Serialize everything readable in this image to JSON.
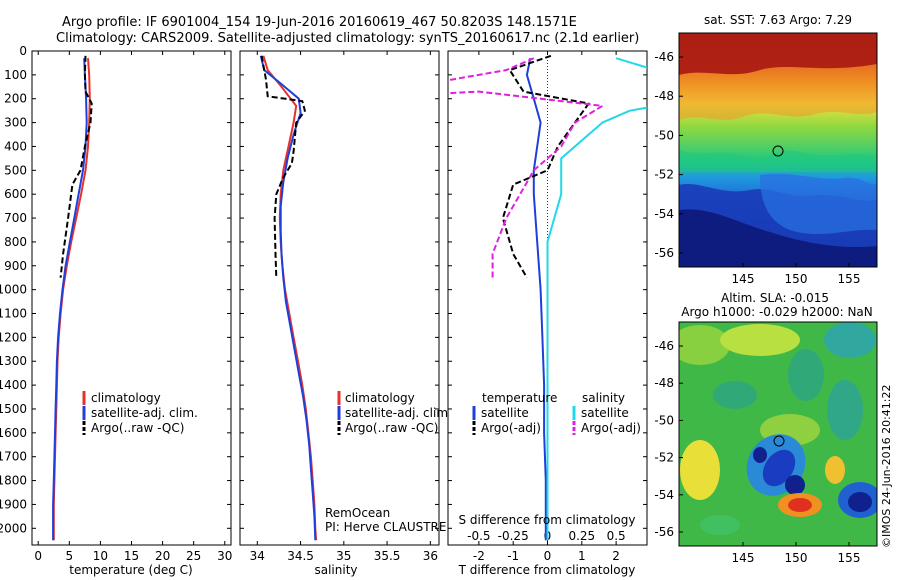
{
  "header": {
    "line1": "Argo profile: IF 6901004_154 19-Jun-2016 20160619_467 50.8203S 148.1571E",
    "line2": "Climatology: CARS2009. Satellite-adjusted climatology: synTS_20160617.nc (2.1d earlier)"
  },
  "colors": {
    "climatology": "#e8312a",
    "satellite": "#1f3fdc",
    "argo": "#000000",
    "sat_cyan": "#22d8e8",
    "argo_magenta": "#e020e0"
  },
  "chart_data": [
    {
      "type": "line",
      "id": "temperature",
      "xlabel": "temperature (deg C)",
      "ylabel": "",
      "xlim": [
        -1,
        31
      ],
      "ylim": [
        2070,
        0
      ],
      "xticks": [
        0,
        5,
        10,
        15,
        20,
        25,
        30
      ],
      "yticks": [
        0,
        100,
        200,
        300,
        400,
        500,
        600,
        700,
        800,
        900,
        1000,
        1100,
        1200,
        1300,
        1400,
        1500,
        1600,
        1700,
        1800,
        1900,
        2000
      ],
      "legend": [
        "climatology",
        "satellite-adj. clim.",
        "Argo(..raw -QC)"
      ],
      "series": [
        {
          "name": "climatology",
          "style": "solid",
          "color": "climatology",
          "points": [
            [
              8.0,
              30
            ],
            [
              8.2,
              100
            ],
            [
              8.3,
              200
            ],
            [
              8.2,
              300
            ],
            [
              8.0,
              400
            ],
            [
              7.6,
              500
            ],
            [
              6.9,
              600
            ],
            [
              6.1,
              700
            ],
            [
              5.3,
              800
            ],
            [
              4.6,
              900
            ],
            [
              4.0,
              1000
            ],
            [
              3.6,
              1100
            ],
            [
              3.3,
              1200
            ],
            [
              3.1,
              1300
            ],
            [
              3.0,
              1400
            ],
            [
              2.9,
              1500
            ],
            [
              2.8,
              1600
            ],
            [
              2.7,
              1700
            ],
            [
              2.6,
              1800
            ],
            [
              2.5,
              1900
            ],
            [
              2.5,
              2000
            ],
            [
              2.5,
              2050
            ]
          ]
        },
        {
          "name": "satellite-adj. clim.",
          "style": "solid",
          "color": "satellite",
          "points": [
            [
              7.4,
              30
            ],
            [
              7.5,
              100
            ],
            [
              7.7,
              200
            ],
            [
              7.8,
              300
            ],
            [
              7.6,
              400
            ],
            [
              7.2,
              500
            ],
            [
              6.5,
              600
            ],
            [
              5.8,
              700
            ],
            [
              5.1,
              800
            ],
            [
              4.4,
              900
            ],
            [
              3.9,
              1000
            ],
            [
              3.5,
              1100
            ],
            [
              3.2,
              1200
            ],
            [
              3.0,
              1300
            ],
            [
              2.9,
              1400
            ],
            [
              2.8,
              1500
            ],
            [
              2.7,
              1600
            ],
            [
              2.6,
              1700
            ],
            [
              2.5,
              1800
            ],
            [
              2.4,
              1900
            ],
            [
              2.4,
              2000
            ],
            [
              2.4,
              2050
            ]
          ]
        },
        {
          "name": "Argo(..raw -QC)",
          "style": "dash",
          "color": "argo",
          "points": [
            [
              7.6,
              20
            ],
            [
              7.5,
              100
            ],
            [
              7.6,
              170
            ],
            [
              8.6,
              220
            ],
            [
              8.4,
              300
            ],
            [
              7.5,
              400
            ],
            [
              6.8,
              500
            ],
            [
              5.5,
              560
            ],
            [
              4.8,
              700
            ],
            [
              4.0,
              850
            ],
            [
              3.6,
              950
            ]
          ]
        }
      ]
    },
    {
      "type": "line",
      "id": "salinity",
      "xlabel": "salinity",
      "ylabel": "",
      "xlim": [
        33.8,
        36.1
      ],
      "ylim": [
        2070,
        0
      ],
      "xticks": [
        34,
        34.5,
        35,
        35.5,
        36
      ],
      "xticklabels": [
        "34",
        "34.5",
        "35",
        "35.5",
        "36"
      ],
      "legend": [
        "climatology",
        "satellite-adj. clim.",
        "Argo(..raw -QC)"
      ],
      "annotation": [
        "RemOcean",
        "PI: Herve CLAUSTRE"
      ],
      "series": [
        {
          "name": "climatology",
          "style": "solid",
          "color": "climatology",
          "points": [
            [
              34.07,
              20
            ],
            [
              34.12,
              80
            ],
            [
              34.28,
              150
            ],
            [
              34.45,
              230
            ],
            [
              34.42,
              300
            ],
            [
              34.36,
              400
            ],
            [
              34.3,
              500
            ],
            [
              34.27,
              600
            ],
            [
              34.26,
              700
            ],
            [
              34.27,
              800
            ],
            [
              34.29,
              900
            ],
            [
              34.32,
              1000
            ],
            [
              34.37,
              1100
            ],
            [
              34.42,
              1200
            ],
            [
              34.47,
              1300
            ],
            [
              34.52,
              1400
            ],
            [
              34.56,
              1500
            ],
            [
              34.59,
              1600
            ],
            [
              34.62,
              1700
            ],
            [
              34.64,
              1800
            ],
            [
              34.66,
              1900
            ],
            [
              34.67,
              2000
            ],
            [
              34.68,
              2050
            ]
          ]
        },
        {
          "name": "satellite-adj. clim.",
          "style": "solid",
          "color": "satellite",
          "points": [
            [
              34.04,
              20
            ],
            [
              34.08,
              80
            ],
            [
              34.25,
              130
            ],
            [
              34.48,
              200
            ],
            [
              34.5,
              260
            ],
            [
              34.42,
              350
            ],
            [
              34.35,
              450
            ],
            [
              34.3,
              550
            ],
            [
              34.27,
              650
            ],
            [
              34.27,
              750
            ],
            [
              34.28,
              850
            ],
            [
              34.3,
              950
            ],
            [
              34.33,
              1050
            ],
            [
              34.38,
              1150
            ],
            [
              34.43,
              1250
            ],
            [
              34.48,
              1350
            ],
            [
              34.53,
              1450
            ],
            [
              34.57,
              1550
            ],
            [
              34.6,
              1650
            ],
            [
              34.62,
              1750
            ],
            [
              34.64,
              1850
            ],
            [
              34.66,
              1950
            ],
            [
              34.67,
              2050
            ]
          ]
        },
        {
          "name": "Argo(..raw -QC)",
          "style": "dash",
          "color": "argo",
          "points": [
            [
              34.05,
              20
            ],
            [
              34.1,
              120
            ],
            [
              34.12,
              190
            ],
            [
              34.52,
              210
            ],
            [
              34.55,
              250
            ],
            [
              34.45,
              300
            ],
            [
              34.42,
              420
            ],
            [
              34.4,
              470
            ],
            [
              34.3,
              530
            ],
            [
              34.22,
              600
            ],
            [
              34.2,
              700
            ],
            [
              34.21,
              850
            ],
            [
              34.22,
              950
            ]
          ]
        }
      ]
    },
    {
      "type": "line",
      "id": "differences",
      "xlabel": "T difference from climatology",
      "xlabel2": "S difference from climatology",
      "xlim": [
        -2.9,
        2.9
      ],
      "ylim": [
        2070,
        0
      ],
      "xticks": [
        -2,
        -1,
        0,
        1,
        2
      ],
      "xticks2": [
        -0.5,
        -0.25,
        0,
        0.25,
        0.5
      ],
      "xticklabels2": [
        "-0.5",
        "-0.25",
        "0",
        "0.25",
        "0.5"
      ],
      "legend_titles": [
        "temperature",
        "salinity"
      ],
      "legend": [
        "satellite",
        "Argo(-adj)",
        "satellite",
        "Argo(-adj)"
      ],
      "series": [
        {
          "name": "satellite",
          "group": "temperature",
          "style": "solid",
          "color": "satellite",
          "points": [
            [
              -0.5,
              30
            ],
            [
              -0.6,
              100
            ],
            [
              -0.4,
              200
            ],
            [
              -0.2,
              300
            ],
            [
              -0.3,
              400
            ],
            [
              -0.4,
              500
            ],
            [
              -0.4,
              600
            ],
            [
              -0.3,
              800
            ],
            [
              -0.2,
              1000
            ],
            [
              -0.15,
              1200
            ],
            [
              -0.1,
              1400
            ],
            [
              -0.1,
              1600
            ],
            [
              -0.05,
              1800
            ],
            [
              -0.05,
              2000
            ],
            [
              -0.05,
              2050
            ]
          ]
        },
        {
          "name": "Argo(-adj)",
          "group": "temperature",
          "style": "dash",
          "color": "argo",
          "points": [
            [
              0.1,
              20
            ],
            [
              -1.1,
              80
            ],
            [
              -0.7,
              170
            ],
            [
              1.2,
              220
            ],
            [
              0.8,
              300
            ],
            [
              0.3,
              400
            ],
            [
              0.0,
              500
            ],
            [
              -1.0,
              560
            ],
            [
              -1.3,
              700
            ],
            [
              -1.0,
              850
            ],
            [
              -0.6,
              950
            ]
          ]
        },
        {
          "name": "satellite",
          "group": "salinity",
          "style": "solid",
          "color": "sat_cyan",
          "points": [
            [
              0.5,
              30
            ],
            [
              0.9,
              100
            ],
            [
              1.1,
              200
            ],
            [
              0.6,
              250
            ],
            [
              0.4,
              300
            ],
            [
              0.1,
              450
            ],
            [
              0.1,
              600
            ],
            [
              0.0,
              800
            ],
            [
              0.0,
              1000
            ],
            [
              0.0,
              1200
            ],
            [
              0.0,
              1400
            ],
            [
              0.0,
              1600
            ],
            [
              0.0,
              1800
            ],
            [
              0.0,
              2000
            ],
            [
              0.0,
              2050
            ]
          ]
        },
        {
          "name": "Argo(-adj)",
          "group": "salinity",
          "style": "dash",
          "color": "argo_magenta",
          "points": [
            [
              -0.1,
              30
            ],
            [
              -0.3,
              80
            ],
            [
              -1.5,
              200
            ],
            [
              -0.5,
              170
            ],
            [
              0.4,
              230
            ],
            [
              0.2,
              300
            ],
            [
              0.1,
              400
            ],
            [
              -0.1,
              500
            ],
            [
              -0.2,
              600
            ],
            [
              -0.3,
              700
            ],
            [
              -0.4,
              850
            ],
            [
              -0.4,
              950
            ]
          ]
        }
      ]
    }
  ],
  "maps": {
    "sst": {
      "title": "sat. SST: 7.63 Argo: 7.29",
      "yticks": [
        "-46",
        "-48",
        "-50",
        "-52",
        "-54",
        "-56"
      ],
      "xticks": [
        "145",
        "150",
        "155"
      ]
    },
    "sla": {
      "title1": "Altim. SLA: -0.015",
      "title2": "Argo h1000: -0.029 h2000: NaN",
      "yticks": [
        "-46",
        "-48",
        "-50",
        "-52",
        "-54",
        "-56"
      ],
      "xticks": [
        "145",
        "150",
        "155"
      ]
    }
  },
  "footer": {
    "credit": "©IMOS 24-Jun-2016 20:41:22"
  }
}
